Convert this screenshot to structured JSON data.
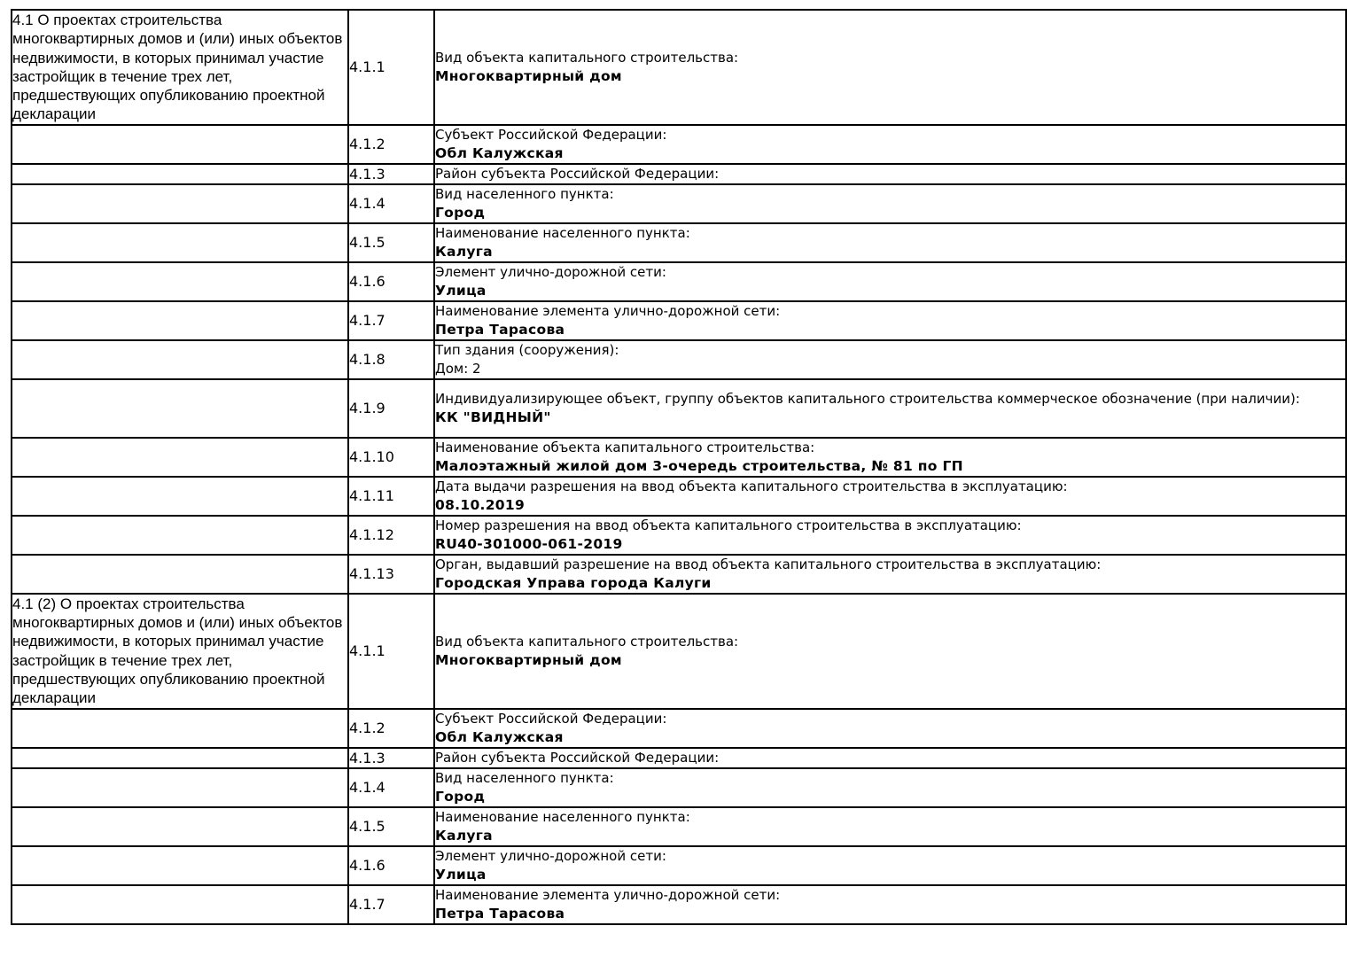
{
  "page": {
    "background_color": "#ffffff",
    "text_color": "#000000",
    "border_color": "#000000"
  },
  "table": {
    "sections": [
      {
        "description": "4.1 О проектах строительства многоквартирных домов и (или) иных объектов недвижимости, в которых принимал участие застройщик в течение трех лет, предшествующих опубликованию проектной декларации",
        "rows": [
          {
            "num": "4.1.1",
            "label": "Вид объекта капитального строительства:",
            "value": "Многоквартирный дом"
          },
          {
            "num": "4.1.2",
            "label": "Субъект Российской Федерации:",
            "value": "Обл Калужская"
          },
          {
            "num": "4.1.3",
            "label": "Район субъекта Российской Федерации:",
            "value": ""
          },
          {
            "num": "4.1.4",
            "label": "Вид населенного пункта:",
            "value": "Город"
          },
          {
            "num": "4.1.5",
            "label": "Наименование населенного пункта:",
            "value": "Калуга"
          },
          {
            "num": "4.1.6",
            "label": "Элемент улично-дорожной сети:",
            "value": "Улица"
          },
          {
            "num": "4.1.7",
            "label": "Наименование элемента улично-дорожной сети:",
            "value": "Петра Тарасова"
          },
          {
            "num": "4.1.8",
            "label": "Тип здания (сооружения):",
            "value": "Дом: 2"
          },
          {
            "num": "4.1.9",
            "label": "Индивидуализирующее объект, группу объектов капитального строительства коммерческое обозначение (при наличии):",
            "value": "КК \"ВИДНЫЙ\""
          },
          {
            "num": "4.1.10",
            "label": "Наименование объекта капитального строительства:",
            "value": "Малоэтажный жилой дом 3-очередь строительства, № 81 по ГП"
          },
          {
            "num": "4.1.11",
            "label": "Дата выдачи разрешения на ввод объекта капитального строительства в эксплуатацию:",
            "value": "08.10.2019"
          },
          {
            "num": "4.1.12",
            "label": "Номер разрешения на ввод объекта капитального строительства в эксплуатацию:",
            "value": "RU40-301000-061-2019"
          },
          {
            "num": "4.1.13",
            "label": "Орган, выдавший разрешение на ввод объекта капитального строительства в эксплуатацию:",
            "value": "Городская Управа города Калуги"
          }
        ]
      },
      {
        "description": "4.1 (2) О проектах строительства многоквартирных домов и (или) иных объектов недвижимости, в которых принимал участие застройщик в течение трех лет, предшествующих опубликованию проектной декларации",
        "rows": [
          {
            "num": "4.1.1",
            "label": "Вид объекта капитального строительства:",
            "value": "Многоквартирный дом"
          },
          {
            "num": "4.1.2",
            "label": "Субъект Российской Федерации:",
            "value": "Обл Калужская"
          },
          {
            "num": "4.1.3",
            "label": "Район субъекта Российской Федерации:",
            "value": ""
          },
          {
            "num": "4.1.4",
            "label": "Вид населенного пункта:",
            "value": "Город"
          },
          {
            "num": "4.1.5",
            "label": "Наименование населенного пункта:",
            "value": "Калуга"
          },
          {
            "num": "4.1.6",
            "label": "Элемент улично-дорожной сети:",
            "value": "Улица"
          },
          {
            "num": "4.1.7",
            "label": "Наименование элемента улично-дорожной сети:",
            "value": "Петра Тарасова"
          }
        ]
      }
    ]
  }
}
